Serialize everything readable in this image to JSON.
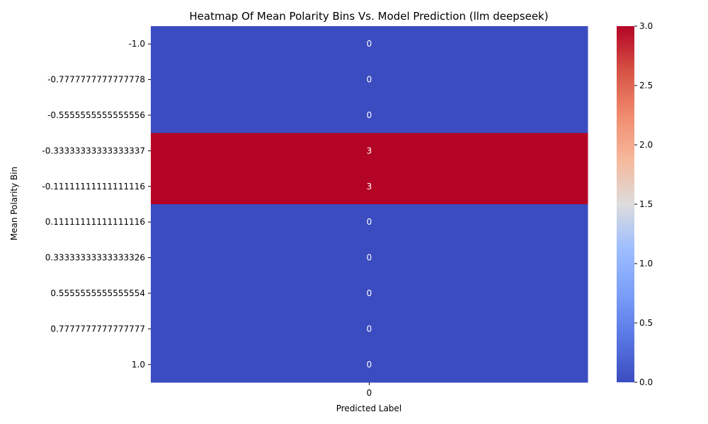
{
  "chart_data": {
    "type": "heatmap",
    "title": "Heatmap Of Mean Polarity Bins Vs. Model Prediction (llm deepseek)",
    "xlabel": "Predicted Label",
    "ylabel": "Mean Polarity Bin",
    "x_categories": [
      "0"
    ],
    "y_categories": [
      "-1.0",
      "-0.7777777777777778",
      "-0.5555555555555556",
      "-0.33333333333333337",
      "-0.11111111111111116",
      "0.11111111111111116",
      "0.33333333333333326",
      "0.5555555555555554",
      "0.7777777777777777",
      "1.0"
    ],
    "values": [
      [
        0
      ],
      [
        0
      ],
      [
        0
      ],
      [
        3
      ],
      [
        3
      ],
      [
        0
      ],
      [
        0
      ],
      [
        0
      ],
      [
        0
      ],
      [
        0
      ]
    ],
    "colormap": "coolwarm",
    "vmin": 0,
    "vmax": 3,
    "colorbar_ticks": [
      "0.0",
      "0.5",
      "1.0",
      "1.5",
      "2.0",
      "2.5",
      "3.0"
    ],
    "annotations": true
  }
}
